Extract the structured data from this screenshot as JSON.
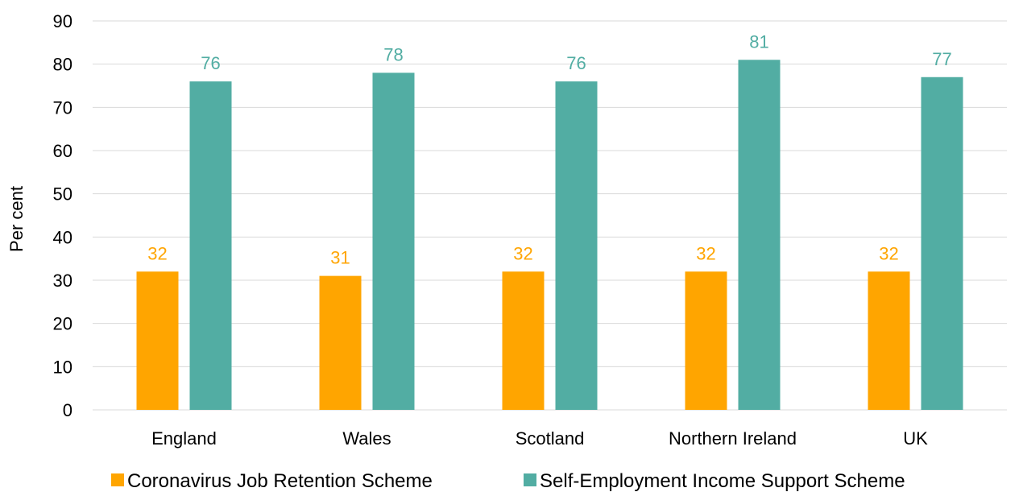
{
  "chart_data": {
    "type": "bar",
    "title": "",
    "xlabel": "",
    "ylabel": "Per cent",
    "ylim": [
      0,
      90
    ],
    "yticks": [
      "0",
      "10",
      "20",
      "30",
      "40",
      "50",
      "60",
      "70",
      "80",
      "90"
    ],
    "grid": true,
    "legend_position": "bottom",
    "categories": [
      "England",
      "Wales",
      "Scotland",
      "Northern Ireland",
      "UK"
    ],
    "series": [
      {
        "name": "Coronavirus Job Retention Scheme",
        "color": "#FFA500",
        "values": [
          32,
          31,
          32,
          32,
          32
        ]
      },
      {
        "name": "Self-Employment Income Support Scheme",
        "color": "#52ADA3",
        "values": [
          76,
          78,
          76,
          81,
          77
        ]
      }
    ]
  }
}
